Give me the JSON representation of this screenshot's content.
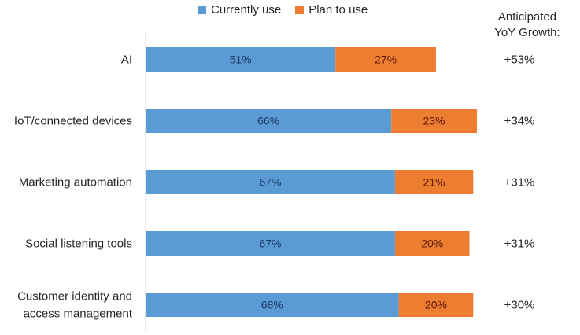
{
  "chart_data": {
    "type": "bar",
    "orientation": "horizontal",
    "stacked": true,
    "title": "",
    "xlabel": "",
    "ylabel": "",
    "xlim": [
      0,
      100
    ],
    "grid": false,
    "legend_position": "top",
    "categories": [
      [
        "AI"
      ],
      [
        "IoT/connected devices"
      ],
      [
        "Marketing automation"
      ],
      [
        "Social listening tools"
      ],
      [
        "Customer identity and",
        "access management"
      ]
    ],
    "series": [
      {
        "name": "Currently use",
        "color": "#5B9BD5",
        "values": [
          51,
          66,
          67,
          67,
          68
        ],
        "labels": [
          "51%",
          "66%",
          "67%",
          "67%",
          "68%"
        ]
      },
      {
        "name": "Plan to use",
        "color": "#ED7D31",
        "values": [
          27,
          23,
          21,
          20,
          20
        ],
        "labels": [
          "27%",
          "23%",
          "21%",
          "20%",
          "20%"
        ]
      }
    ],
    "annotation_title": [
      "Anticipated",
      "YoY Growth:"
    ],
    "annotations": [
      "+53%",
      "+34%",
      "+31%",
      "+31%",
      "+30%"
    ]
  }
}
